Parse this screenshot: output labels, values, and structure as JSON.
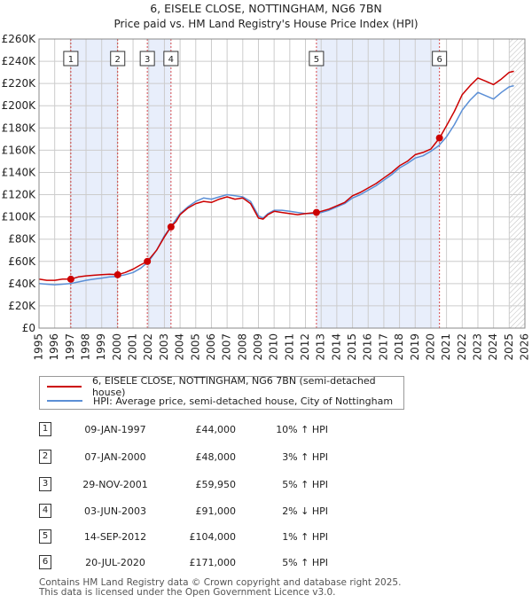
{
  "chart_data": {
    "type": "line",
    "title": "6, EISELE CLOSE, NOTTINGHAM, NG6 7BN",
    "subtitle": "Price paid vs. HM Land Registry's House Price Index (HPI)",
    "ylim": [
      0,
      260000
    ],
    "xlim": [
      1995,
      2026
    ],
    "y_ticks": [
      0,
      20000,
      40000,
      60000,
      80000,
      100000,
      120000,
      140000,
      160000,
      180000,
      200000,
      220000,
      240000,
      260000
    ],
    "y_tick_labels": [
      "£0",
      "£20K",
      "£40K",
      "£60K",
      "£80K",
      "£100K",
      "£120K",
      "£140K",
      "£160K",
      "£180K",
      "£200K",
      "£220K",
      "£240K",
      "£260K"
    ],
    "x_ticks": [
      1995,
      1996,
      1997,
      1998,
      1999,
      2000,
      2001,
      2002,
      2003,
      2004,
      2005,
      2006,
      2007,
      2008,
      2009,
      2010,
      2011,
      2012,
      2013,
      2014,
      2015,
      2016,
      2017,
      2018,
      2019,
      2020,
      2021,
      2022,
      2023,
      2024,
      2025,
      2026
    ],
    "series": [
      {
        "name": "6, EISELE CLOSE, NOTTINGHAM, NG6 7BN (semi-detached house)",
        "color": "#cc0000",
        "x": [
          1995.0,
          1995.5,
          1996.0,
          1996.5,
          1997.03,
          1997.5,
          1998.0,
          1998.5,
          1999.0,
          1999.5,
          2000.02,
          2000.5,
          2001.0,
          2001.5,
          2001.91,
          2002.5,
          2003.0,
          2003.42,
          2003.75,
          2004.0,
          2004.5,
          2005.0,
          2005.5,
          2006.0,
          2006.5,
          2007.0,
          2007.5,
          2008.0,
          2008.5,
          2009.0,
          2009.3,
          2009.6,
          2010.0,
          2010.5,
          2011.0,
          2011.5,
          2012.0,
          2012.7,
          2013.0,
          2013.5,
          2014.0,
          2014.5,
          2015.0,
          2015.5,
          2016.0,
          2016.5,
          2017.0,
          2017.5,
          2018.0,
          2018.5,
          2019.0,
          2019.5,
          2020.0,
          2020.55,
          2021.0,
          2021.5,
          2022.0,
          2022.5,
          2023.0,
          2023.5,
          2024.0,
          2024.5,
          2025.0,
          2025.3
        ],
        "values": [
          44000,
          43000,
          43000,
          44000,
          44000,
          46000,
          47000,
          47500,
          48000,
          48500,
          48000,
          50000,
          53000,
          57000,
          59950,
          70000,
          82000,
          91000,
          96000,
          102000,
          108000,
          112000,
          114000,
          113000,
          116000,
          118000,
          116000,
          117000,
          112000,
          99000,
          98000,
          102000,
          105000,
          104000,
          103000,
          102000,
          103000,
          104000,
          105000,
          107000,
          110000,
          113000,
          119000,
          122000,
          126000,
          130000,
          135000,
          140000,
          146000,
          150000,
          156000,
          158000,
          161000,
          171000,
          182000,
          195000,
          210000,
          218000,
          225000,
          222000,
          219000,
          224000,
          230000,
          231000
        ]
      },
      {
        "name": "HPI: Average price, semi-detached house, City of Nottingham",
        "color": "#5b8fd6",
        "x": [
          1995.0,
          1995.5,
          1996.0,
          1996.5,
          1997.0,
          1997.5,
          1998.0,
          1998.5,
          1999.0,
          1999.5,
          2000.0,
          2000.5,
          2001.0,
          2001.5,
          2002.0,
          2002.5,
          2003.0,
          2003.5,
          2004.0,
          2004.5,
          2005.0,
          2005.5,
          2006.0,
          2006.5,
          2007.0,
          2007.5,
          2008.0,
          2008.5,
          2009.0,
          2009.3,
          2009.6,
          2010.0,
          2010.5,
          2011.0,
          2011.5,
          2012.0,
          2012.5,
          2013.0,
          2013.5,
          2014.0,
          2014.5,
          2015.0,
          2015.5,
          2016.0,
          2016.5,
          2017.0,
          2017.5,
          2018.0,
          2018.5,
          2019.0,
          2019.5,
          2020.0,
          2020.5,
          2021.0,
          2021.5,
          2022.0,
          2022.5,
          2023.0,
          2023.5,
          2024.0,
          2024.5,
          2025.0,
          2025.3
        ],
        "values": [
          40000,
          39500,
          39000,
          39500,
          40000,
          41500,
          43000,
          44000,
          45000,
          46000,
          46500,
          48000,
          50000,
          54000,
          60000,
          70000,
          83000,
          93000,
          103000,
          109000,
          114000,
          117000,
          116000,
          118000,
          120000,
          119000,
          118000,
          114000,
          101000,
          99000,
          103000,
          106000,
          106000,
          105000,
          104000,
          103000,
          103000,
          104000,
          106000,
          109000,
          112000,
          117000,
          120000,
          124000,
          128000,
          133000,
          138000,
          144000,
          148000,
          153000,
          155000,
          159000,
          164000,
          172000,
          183000,
          196000,
          205000,
          212000,
          209000,
          206000,
          212000,
          217000,
          218000
        ]
      }
    ],
    "transactions": [
      {
        "num": "1",
        "date": "09-JAN-1997",
        "price": "£44,000",
        "hpi": "10% ↑ HPI",
        "x": 1997.03,
        "value": 44000
      },
      {
        "num": "2",
        "date": "07-JAN-2000",
        "price": "£48,000",
        "hpi": "3% ↑ HPI",
        "x": 2000.02,
        "value": 48000
      },
      {
        "num": "3",
        "date": "29-NOV-2001",
        "price": "£59,950",
        "hpi": "5% ↑ HPI",
        "x": 2001.91,
        "value": 59950
      },
      {
        "num": "4",
        "date": "03-JUN-2003",
        "price": "£91,000",
        "hpi": "2% ↓ HPI",
        "x": 2003.42,
        "value": 91000
      },
      {
        "num": "5",
        "date": "14-SEP-2012",
        "price": "£104,000",
        "hpi": "1% ↑ HPI",
        "x": 2012.7,
        "value": 104000
      },
      {
        "num": "6",
        "date": "20-JUL-2020",
        "price": "£171,000",
        "hpi": "5% ↑ HPI",
        "x": 2020.55,
        "value": 171000
      }
    ],
    "shaded_periods": [
      [
        1997.03,
        2000.02
      ],
      [
        2001.91,
        2003.42
      ],
      [
        2012.7,
        2020.55
      ]
    ],
    "future_hatch_from": 2025.0
  },
  "footer": {
    "line1": "Contains HM Land Registry data © Crown copyright and database right 2025.",
    "line2": "This data is licensed under the Open Government Licence v3.0."
  },
  "colors": {
    "property_line": "#cc0000",
    "hpi_line": "#5b8fd6",
    "shade": "#e8eefb",
    "grid": "#cccccc",
    "marker_line": "#cc0000"
  }
}
